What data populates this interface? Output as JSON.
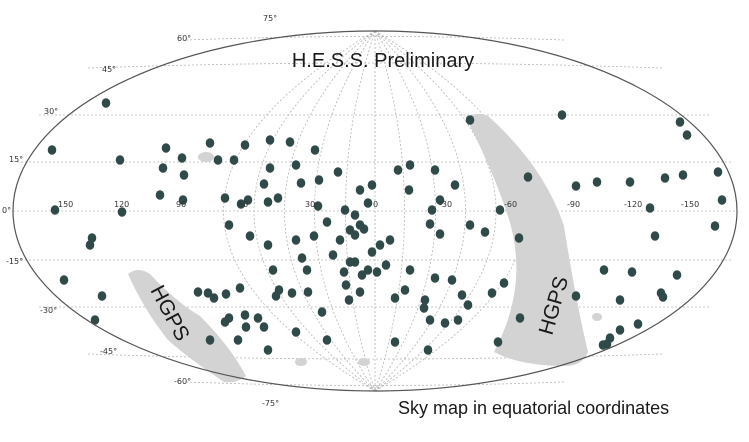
{
  "projection": "aitoff",
  "title": "H.E.S.S. Preliminary",
  "caption": "Sky map in equatorial coordinates",
  "region_label": "HGPS",
  "colors": {
    "background": "#ffffff",
    "outline": "#555555",
    "grid": "#b5b5b5",
    "source": "#2f4a48",
    "hgps_band": "#d3d3d3"
  },
  "latitude_ticks": [
    "75°",
    "60°",
    "45°",
    "30°",
    "15°",
    "0°",
    "-15°",
    "-30°",
    "-45°",
    "-60°",
    "-75°"
  ],
  "longitude_ticks": [
    "150",
    "120",
    "90",
    "60",
    "30",
    "0",
    "-30",
    "-60",
    "-90",
    "-120",
    "-150"
  ]
}
